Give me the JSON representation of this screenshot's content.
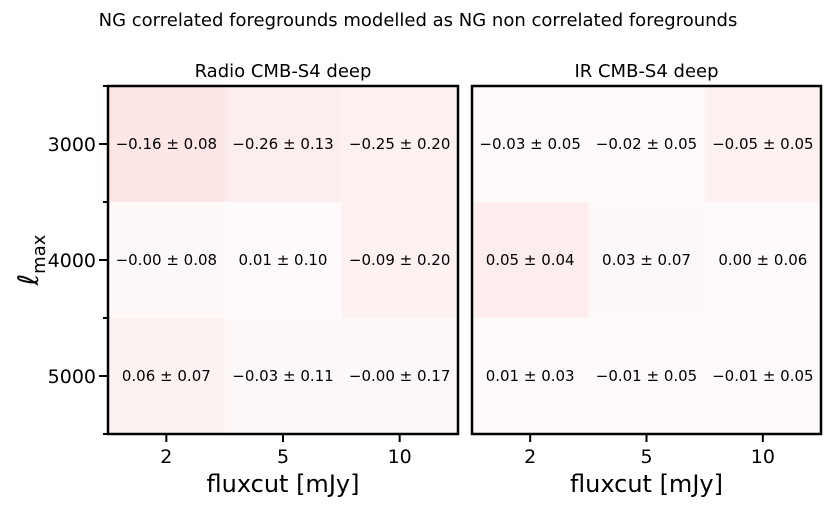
{
  "figure": {
    "suptitle": "NG correlated foregrounds modelled as NG non correlated foregrounds"
  },
  "chart_data": [
    {
      "type": "heatmap",
      "title": "Radio CMB-S4 deep",
      "xlabel": "fluxcut [mJy]",
      "ylabel": "ℓ",
      "ylabel_sub": "max",
      "x_categories": [
        "2",
        "5",
        "10"
      ],
      "y_categories": [
        "3000",
        "4000",
        "5000"
      ],
      "values": [
        [
          -0.16,
          -0.26,
          -0.25
        ],
        [
          -0.0,
          0.01,
          -0.09
        ],
        [
          0.06,
          -0.03,
          -0.0
        ]
      ],
      "errors": [
        [
          0.08,
          0.13,
          0.2
        ],
        [
          0.08,
          0.1,
          0.2
        ],
        [
          0.07,
          0.11,
          0.17
        ]
      ],
      "labels": [
        [
          "−0.16 ± 0.08",
          "−0.26 ± 0.13",
          "−0.25 ± 0.20"
        ],
        [
          "−0.00 ± 0.08",
          "0.01 ± 0.10",
          "−0.09 ± 0.20"
        ],
        [
          "0.06 ± 0.07",
          "−0.03 ± 0.11",
          "−0.00 ± 0.17"
        ]
      ],
      "colors": [
        [
          "#fce6e6",
          "#fdeeee",
          "#fdf0f0"
        ],
        [
          "#fef8f9",
          "#fef9fa",
          "#fdf1f1"
        ],
        [
          "#fdf2f2",
          "#fef8f9",
          "#fef8f9"
        ]
      ]
    },
    {
      "type": "heatmap",
      "title": "IR CMB-S4 deep",
      "xlabel": "fluxcut [mJy]",
      "x_categories": [
        "2",
        "5",
        "10"
      ],
      "y_categories": [
        "3000",
        "4000",
        "5000"
      ],
      "values": [
        [
          -0.03,
          -0.02,
          -0.05
        ],
        [
          0.05,
          0.03,
          0.0
        ],
        [
          0.01,
          -0.01,
          -0.01
        ]
      ],
      "errors": [
        [
          0.05,
          0.05,
          0.05
        ],
        [
          0.04,
          0.07,
          0.06
        ],
        [
          0.03,
          0.05,
          0.05
        ]
      ],
      "labels": [
        [
          "−0.03 ± 0.05",
          "−0.02 ± 0.05",
          "−0.05 ± 0.05"
        ],
        [
          "0.05 ± 0.04",
          "0.03 ± 0.07",
          "0.00 ± 0.06"
        ],
        [
          "0.01 ± 0.03",
          "−0.01 ± 0.05",
          "−0.01 ± 0.05"
        ]
      ],
      "colors": [
        [
          "#fef9fa",
          "#fefafa",
          "#fdf1f1"
        ],
        [
          "#fdeded",
          "#fef8f9",
          "#fef9fa"
        ],
        [
          "#fef9fa",
          "#fefafa",
          "#fefafa"
        ]
      ]
    }
  ]
}
